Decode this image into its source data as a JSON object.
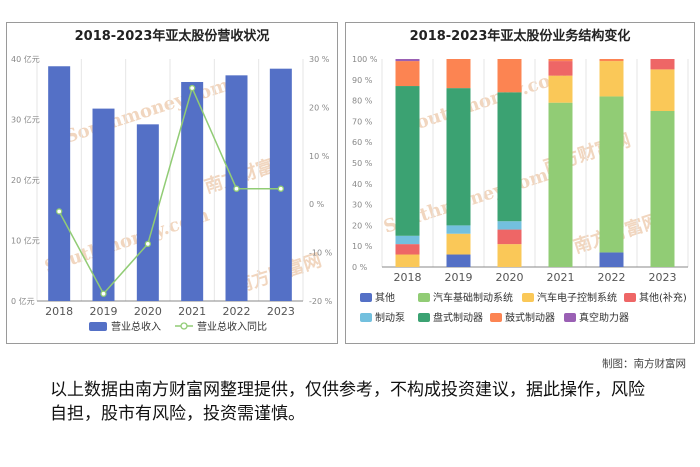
{
  "credit": "制图：南方财富网",
  "disclaimer": "以上数据由南方财富网整理提供，仅供参考，不构成投资建议，据此操作，风险自担，股市有风险，投资需谨慎。",
  "watermark": {
    "cn": "南方财富网",
    "en": "Southmoney.com"
  },
  "chart_data": [
    {
      "type": "bar",
      "title": "2018-2023年亚太股份营收状况",
      "categories": [
        "2018",
        "2019",
        "2020",
        "2021",
        "2022",
        "2023"
      ],
      "series": [
        {
          "name": "营业总收入",
          "type": "bar",
          "axis": "left",
          "color": "#5470c6",
          "values": [
            38.8,
            31.8,
            29.2,
            36.2,
            37.3,
            38.4
          ]
        },
        {
          "name": "营业总收入同比",
          "type": "line",
          "axis": "right",
          "color": "#91cc75",
          "values": [
            -1.5,
            -18.5,
            -8.2,
            24.0,
            3.2,
            3.2
          ]
        }
      ],
      "y_left": {
        "min": 0,
        "max": 40,
        "step": 10,
        "tick_labels": [
          "0 亿元",
          "10 亿元",
          "20 亿元",
          "30 亿元",
          "40 亿元"
        ]
      },
      "y_right": {
        "min": -20,
        "max": 30,
        "step": 10,
        "tick_labels": [
          "-20 %",
          "-10 %",
          "0 %",
          "10 %",
          "20 %",
          "30 %"
        ]
      },
      "grid": "vertical",
      "legend_position": "bottom"
    },
    {
      "type": "bar",
      "stacked": true,
      "title": "2018-2023年亚太股份业务结构变化",
      "categories": [
        "2018",
        "2019",
        "2020",
        "2021",
        "2022",
        "2023"
      ],
      "y_tick_labels": [
        "0 %",
        "10 %",
        "20 %",
        "30 %",
        "40 %",
        "50 %",
        "60 %",
        "70 %",
        "80 %",
        "90 %",
        "100 %"
      ],
      "ylim": [
        0,
        100
      ],
      "series": [
        {
          "name": "其他",
          "color": "#5470c6",
          "values": [
            0,
            6,
            0,
            0,
            7,
            0
          ]
        },
        {
          "name": "汽车基础制动系统",
          "color": "#91cc75",
          "values": [
            0,
            0,
            0,
            79,
            75,
            75
          ]
        },
        {
          "name": "汽车电子控制系统",
          "color": "#fac858",
          "values": [
            6,
            10,
            11,
            13,
            17,
            20
          ]
        },
        {
          "name": "其他(补充)",
          "color": "#ee6666",
          "values": [
            5,
            0,
            7,
            7,
            0,
            5
          ]
        },
        {
          "name": "制动泵",
          "color": "#73c0de",
          "values": [
            4,
            4,
            4,
            0,
            0,
            0
          ]
        },
        {
          "name": "盘式制动器",
          "color": "#3ba272",
          "values": [
            72,
            66,
            62,
            0,
            0,
            0
          ]
        },
        {
          "name": "鼓式制动器",
          "color": "#fc8452",
          "values": [
            12,
            14,
            16,
            1,
            1,
            0
          ]
        },
        {
          "name": "真空助力器",
          "color": "#9a60b4",
          "values": [
            1,
            0,
            0,
            0,
            0,
            0
          ]
        }
      ],
      "legend_position": "bottom",
      "grid": "vertical"
    }
  ]
}
